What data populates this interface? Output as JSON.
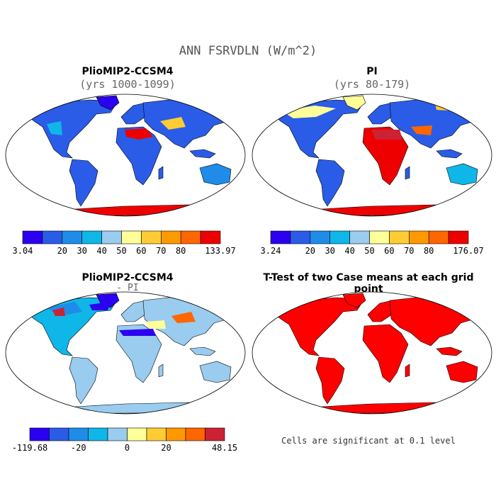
{
  "title": "ANN FSRVDLN (W/m^2)",
  "colors": {
    "scale": [
      "#2c00f0",
      "#2a5ce8",
      "#1e8ce8",
      "#0fb6e8",
      "#99ccee",
      "#ffff99",
      "#ffcc33",
      "#ff9900",
      "#ff6600",
      "#ee0000",
      "#cc2233"
    ],
    "diff_scale": [
      "#2c00f0",
      "#2a5ce8",
      "#1e8ce8",
      "#0fb6e8",
      "#99ccee",
      "#ffff99",
      "#ffcc33",
      "#ff9900",
      "#ff6600",
      "#cc2233"
    ],
    "land_signif": "#ff0000",
    "ocean": "#ffffff"
  },
  "panels": [
    {
      "id": "plio",
      "title": "PlioMIP2-CCSM4",
      "subtitle": "(yrs 1000-1099)",
      "colorbar": {
        "labels": [
          "3.04",
          "20",
          "30",
          "40",
          "50",
          "60",
          "70",
          "80",
          "133.97"
        ]
      }
    },
    {
      "id": "pi",
      "title": "PI",
      "subtitle": "(yrs 80-179)",
      "colorbar": {
        "labels": [
          "3.24",
          "20",
          "30",
          "40",
          "50",
          "60",
          "70",
          "80",
          "176.07"
        ]
      }
    },
    {
      "id": "diff",
      "title": "PlioMIP2-CCSM4",
      "subtitle": "- PI",
      "colorbar": {
        "labels": [
          "-119.68",
          "-20",
          "0",
          "20",
          "48.15"
        ]
      }
    },
    {
      "id": "ttest",
      "title": "T-Test of two Case means at each grid point",
      "subtitle": "",
      "note": "Cells are significant at 0.1 level"
    }
  ],
  "chart_data": [
    {
      "type": "heatmap",
      "title": "PlioMIP2-CCSM4",
      "subtitle": "(yrs 1000-1099)",
      "units": "W/m^2",
      "variable": "ANN FSRVDLN",
      "colorbar_range": [
        3.04,
        133.97
      ],
      "colorbar_ticks": [
        20,
        30,
        40,
        50,
        60,
        70,
        80
      ],
      "projection": "global map"
    },
    {
      "type": "heatmap",
      "title": "PI",
      "subtitle": "(yrs 80-179)",
      "units": "W/m^2",
      "variable": "ANN FSRVDLN",
      "colorbar_range": [
        3.24,
        176.07
      ],
      "colorbar_ticks": [
        20,
        30,
        40,
        50,
        60,
        70,
        80
      ],
      "projection": "global map"
    },
    {
      "type": "heatmap",
      "title": "PlioMIP2-CCSM4",
      "subtitle": "- PI",
      "units": "W/m^2",
      "variable": "ANN FSRVDLN",
      "colorbar_range": [
        -119.68,
        48.15
      ],
      "colorbar_ticks": [
        -20,
        0,
        20
      ],
      "projection": "global map"
    },
    {
      "type": "heatmap",
      "title": "T-Test of two Case means at each grid point",
      "annotation": "Cells are significant at 0.1 level",
      "projection": "global map"
    }
  ]
}
